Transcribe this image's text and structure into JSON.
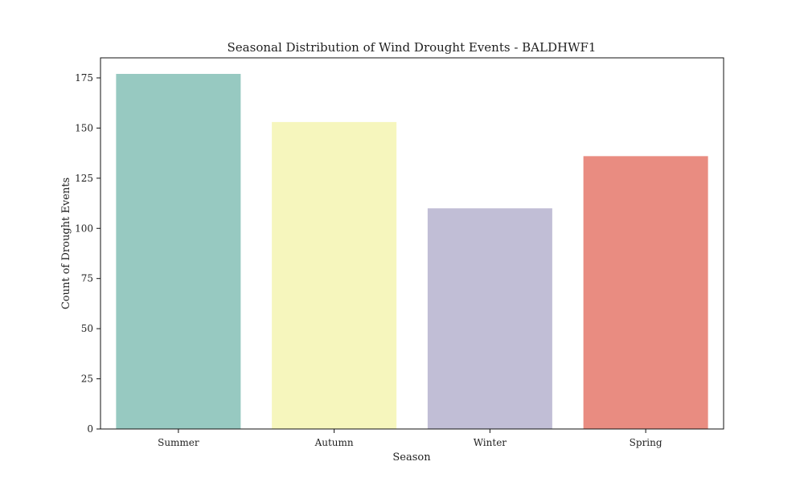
{
  "chart_data": {
    "type": "bar",
    "title": "Seasonal Distribution of Wind Drought Events - BALDHWF1",
    "xlabel": "Season",
    "ylabel": "Count of Drought Events",
    "categories": [
      "Summer",
      "Autumn",
      "Winter",
      "Spring"
    ],
    "values": [
      177,
      153,
      110,
      136
    ],
    "colors": [
      "#97c9c1",
      "#f6f6bd",
      "#c1bed6",
      "#e98c81"
    ],
    "ylim": [
      0,
      185
    ],
    "yticks": [
      0,
      25,
      50,
      75,
      100,
      125,
      150,
      175
    ],
    "grid": false,
    "legend": "none"
  }
}
